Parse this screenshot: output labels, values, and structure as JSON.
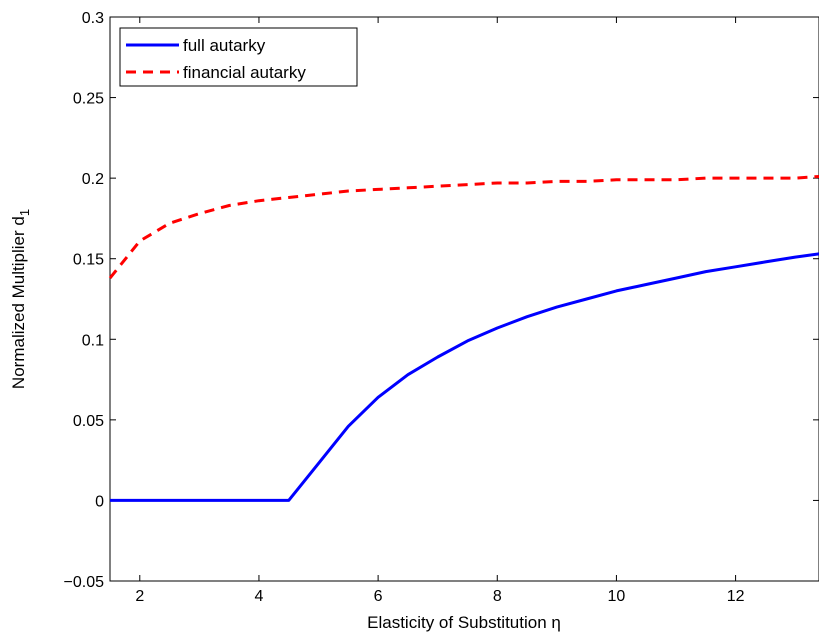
{
  "chart_data": {
    "type": "line",
    "xlabel": "Elasticity of Substitution η",
    "ylabel": "Normalized Multiplier d",
    "ylabel_subscript": "1",
    "xlim": [
      1.5,
      13.4
    ],
    "ylim": [
      -0.05,
      0.3
    ],
    "xticks": [
      2,
      4,
      6,
      8,
      10,
      12
    ],
    "yticks": [
      -0.05,
      0,
      0.05,
      0.1,
      0.15,
      0.2,
      0.25,
      0.3
    ],
    "ytick_labels": [
      "−0.05",
      "0",
      "0.05",
      "0.1",
      "0.15",
      "0.2",
      "0.25",
      "0.3"
    ],
    "grid": false,
    "legend_position": "top-left",
    "series": [
      {
        "name": "full autarky",
        "color": "#0000ff",
        "style": "solid",
        "x": [
          1.5,
          2,
          2.5,
          3,
          3.5,
          4,
          4.5,
          5,
          5.5,
          6,
          6.5,
          7,
          7.5,
          8,
          8.5,
          9,
          9.5,
          10,
          10.5,
          11,
          11.5,
          12,
          12.5,
          13,
          13.4
        ],
        "y": [
          0,
          0,
          0,
          0,
          0,
          0,
          0,
          0.023,
          0.046,
          0.064,
          0.078,
          0.089,
          0.099,
          0.107,
          0.114,
          0.12,
          0.125,
          0.13,
          0.134,
          0.138,
          0.142,
          0.145,
          0.148,
          0.151,
          0.153
        ]
      },
      {
        "name": "financial autarky",
        "color": "#ff0000",
        "style": "dashed",
        "x": [
          1.5,
          2,
          2.5,
          3,
          3.5,
          4,
          4.5,
          5,
          5.5,
          6,
          6.5,
          7,
          7.5,
          8,
          8.5,
          9,
          9.5,
          10,
          10.5,
          11,
          11.5,
          12,
          12.5,
          13,
          13.4
        ],
        "y": [
          0.138,
          0.161,
          0.172,
          0.178,
          0.183,
          0.186,
          0.188,
          0.19,
          0.192,
          0.193,
          0.194,
          0.195,
          0.196,
          0.197,
          0.197,
          0.198,
          0.198,
          0.199,
          0.199,
          0.199,
          0.2,
          0.2,
          0.2,
          0.2,
          0.201
        ]
      }
    ]
  }
}
